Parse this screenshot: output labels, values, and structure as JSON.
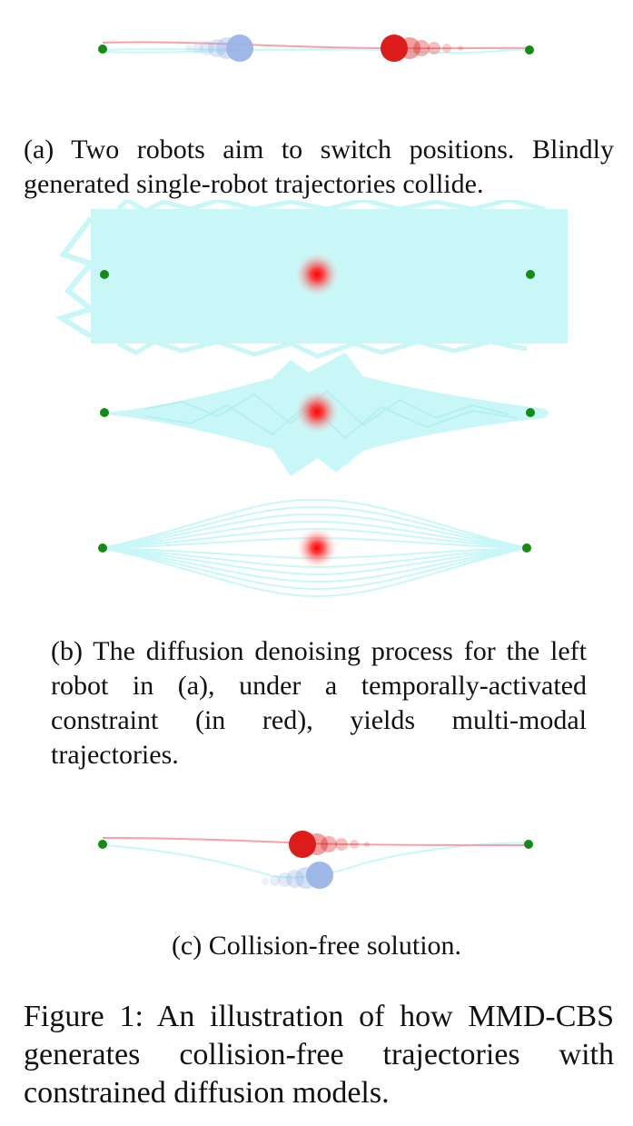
{
  "figure": {
    "colors": {
      "start_goal": "#168a16",
      "robot_left": "#9ab4e6",
      "robot_right": "#dd1c1c",
      "trajectory_cyan": "#c9f7f7",
      "trajectory_pink": "#f7a0a8"
    },
    "panel_a": {
      "caption": "(a) Two robots aim to switch positions. Blindly generated single-robot trajectories collide."
    },
    "panel_b": {
      "caption": "(b) The diffusion denoising process for the left robot in (a), under a temporally-activated constraint (in red), yields multi-modal trajectories."
    },
    "panel_c": {
      "caption": "(c) Collision-free solution."
    },
    "main_caption": "Figure 1:  An illustration of how MMD-CBS generates collision-free trajectories with constrained diffusion models."
  }
}
